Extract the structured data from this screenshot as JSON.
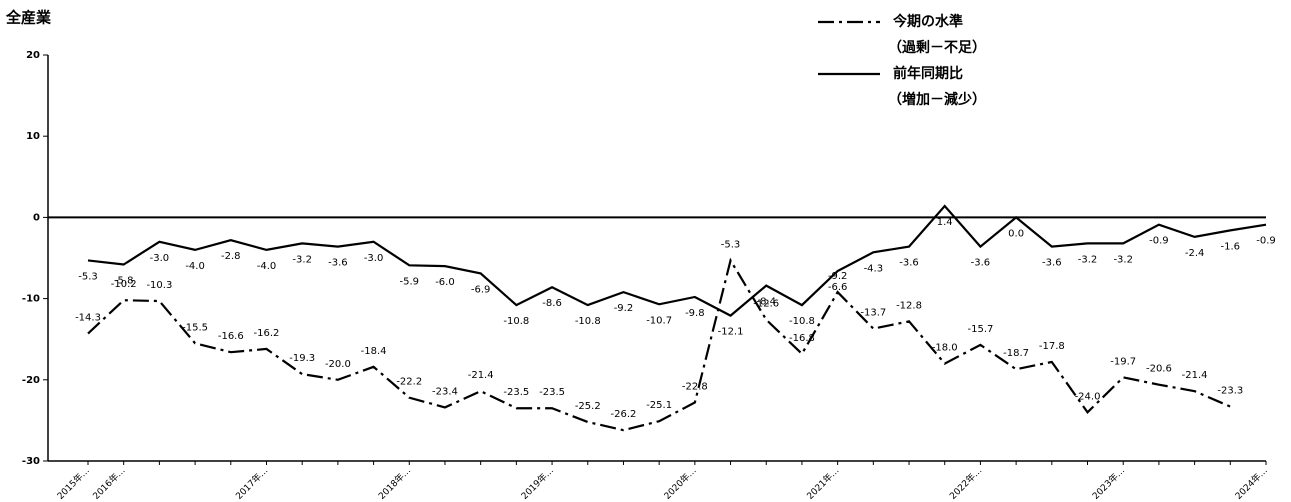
{
  "chart_data": {
    "type": "line",
    "title": "全産業",
    "categories": [
      "2015年…",
      "2016年…",
      null,
      null,
      null,
      "2017年…",
      null,
      null,
      null,
      "2018年…",
      null,
      null,
      null,
      "2019年…",
      null,
      null,
      null,
      "2020年…",
      null,
      null,
      null,
      "2021年…",
      null,
      null,
      null,
      "2022年…",
      null,
      null,
      null,
      "2023年…",
      null,
      null,
      null,
      "2024年…"
    ],
    "ylim": [
      -30,
      20
    ],
    "yticks": [
      -30,
      -20,
      -10,
      0,
      10,
      20
    ],
    "series": [
      {
        "name": [
          "今期の水準",
          "（過剰－不足）"
        ],
        "color": "#000000",
        "dash": "dashdot",
        "values": [
          -14.3,
          -10.2,
          -10.3,
          -15.5,
          -16.6,
          -16.2,
          -19.3,
          -20.0,
          -18.4,
          -22.2,
          -23.4,
          -21.4,
          -23.5,
          -23.5,
          -25.2,
          -26.2,
          -25.1,
          -22.8,
          -5.3,
          -12.6,
          -16.8,
          -9.2,
          -13.7,
          -12.8,
          -18.0,
          -15.7,
          -18.7,
          -17.8,
          -24.0,
          -19.7,
          -20.6,
          -21.4,
          -23.3,
          null
        ],
        "value_labels": [
          "-14.3",
          "-10.2",
          "-10.3",
          "-15.5",
          "-16.6",
          "-16.2",
          "-19.3",
          "-20.0",
          "-18.4",
          "-22.2",
          "-23.4",
          "-21.4",
          "-23.5",
          "-23.5",
          "-25.2",
          "-26.2",
          "-25.1",
          "-22.8",
          "-5.3",
          "-12.6",
          "-16.8",
          "-9.2",
          "-13.7",
          "-12.8",
          "-18.0",
          "-15.7",
          "-18.7",
          "-17.8",
          "-24.0",
          "-19.7",
          "-20.6",
          "-21.4",
          "-23.3",
          null
        ]
      },
      {
        "name": [
          "前年同期比",
          "（増加－減少）"
        ],
        "color": "#000000",
        "dash": "solid",
        "values": [
          -5.3,
          -5.8,
          -3.0,
          -4.0,
          -2.8,
          -4.0,
          -3.2,
          -3.6,
          -3.0,
          -5.9,
          -6.0,
          -6.9,
          -10.8,
          -8.6,
          -10.8,
          -9.2,
          -10.7,
          -9.8,
          -12.1,
          -8.4,
          -10.8,
          -6.6,
          -4.3,
          -3.6,
          1.4,
          -3.6,
          0.0,
          -3.6,
          -3.2,
          -3.2,
          -0.9,
          -2.4,
          -1.6,
          -0.9
        ],
        "value_labels": [
          "-5.3",
          "-5.8",
          "-3.0",
          "-4.0",
          "-2.8",
          "-4.0",
          "-3.2",
          "-3.6",
          "-3.0",
          "-5.9",
          "-6.0",
          "-6.9",
          "-10.8",
          "-8.6",
          "-10.8",
          "-9.2",
          "-10.7",
          "-9.8",
          "-12.1",
          "-8.4",
          "-10.8",
          "-6.6",
          "-4.3",
          "-3.6",
          "1.4",
          "-3.6",
          "0.0",
          "-3.6",
          "-3.2",
          "-3.2",
          "-0.9",
          "-2.4",
          "-1.6",
          "-0.9"
        ]
      }
    ]
  }
}
